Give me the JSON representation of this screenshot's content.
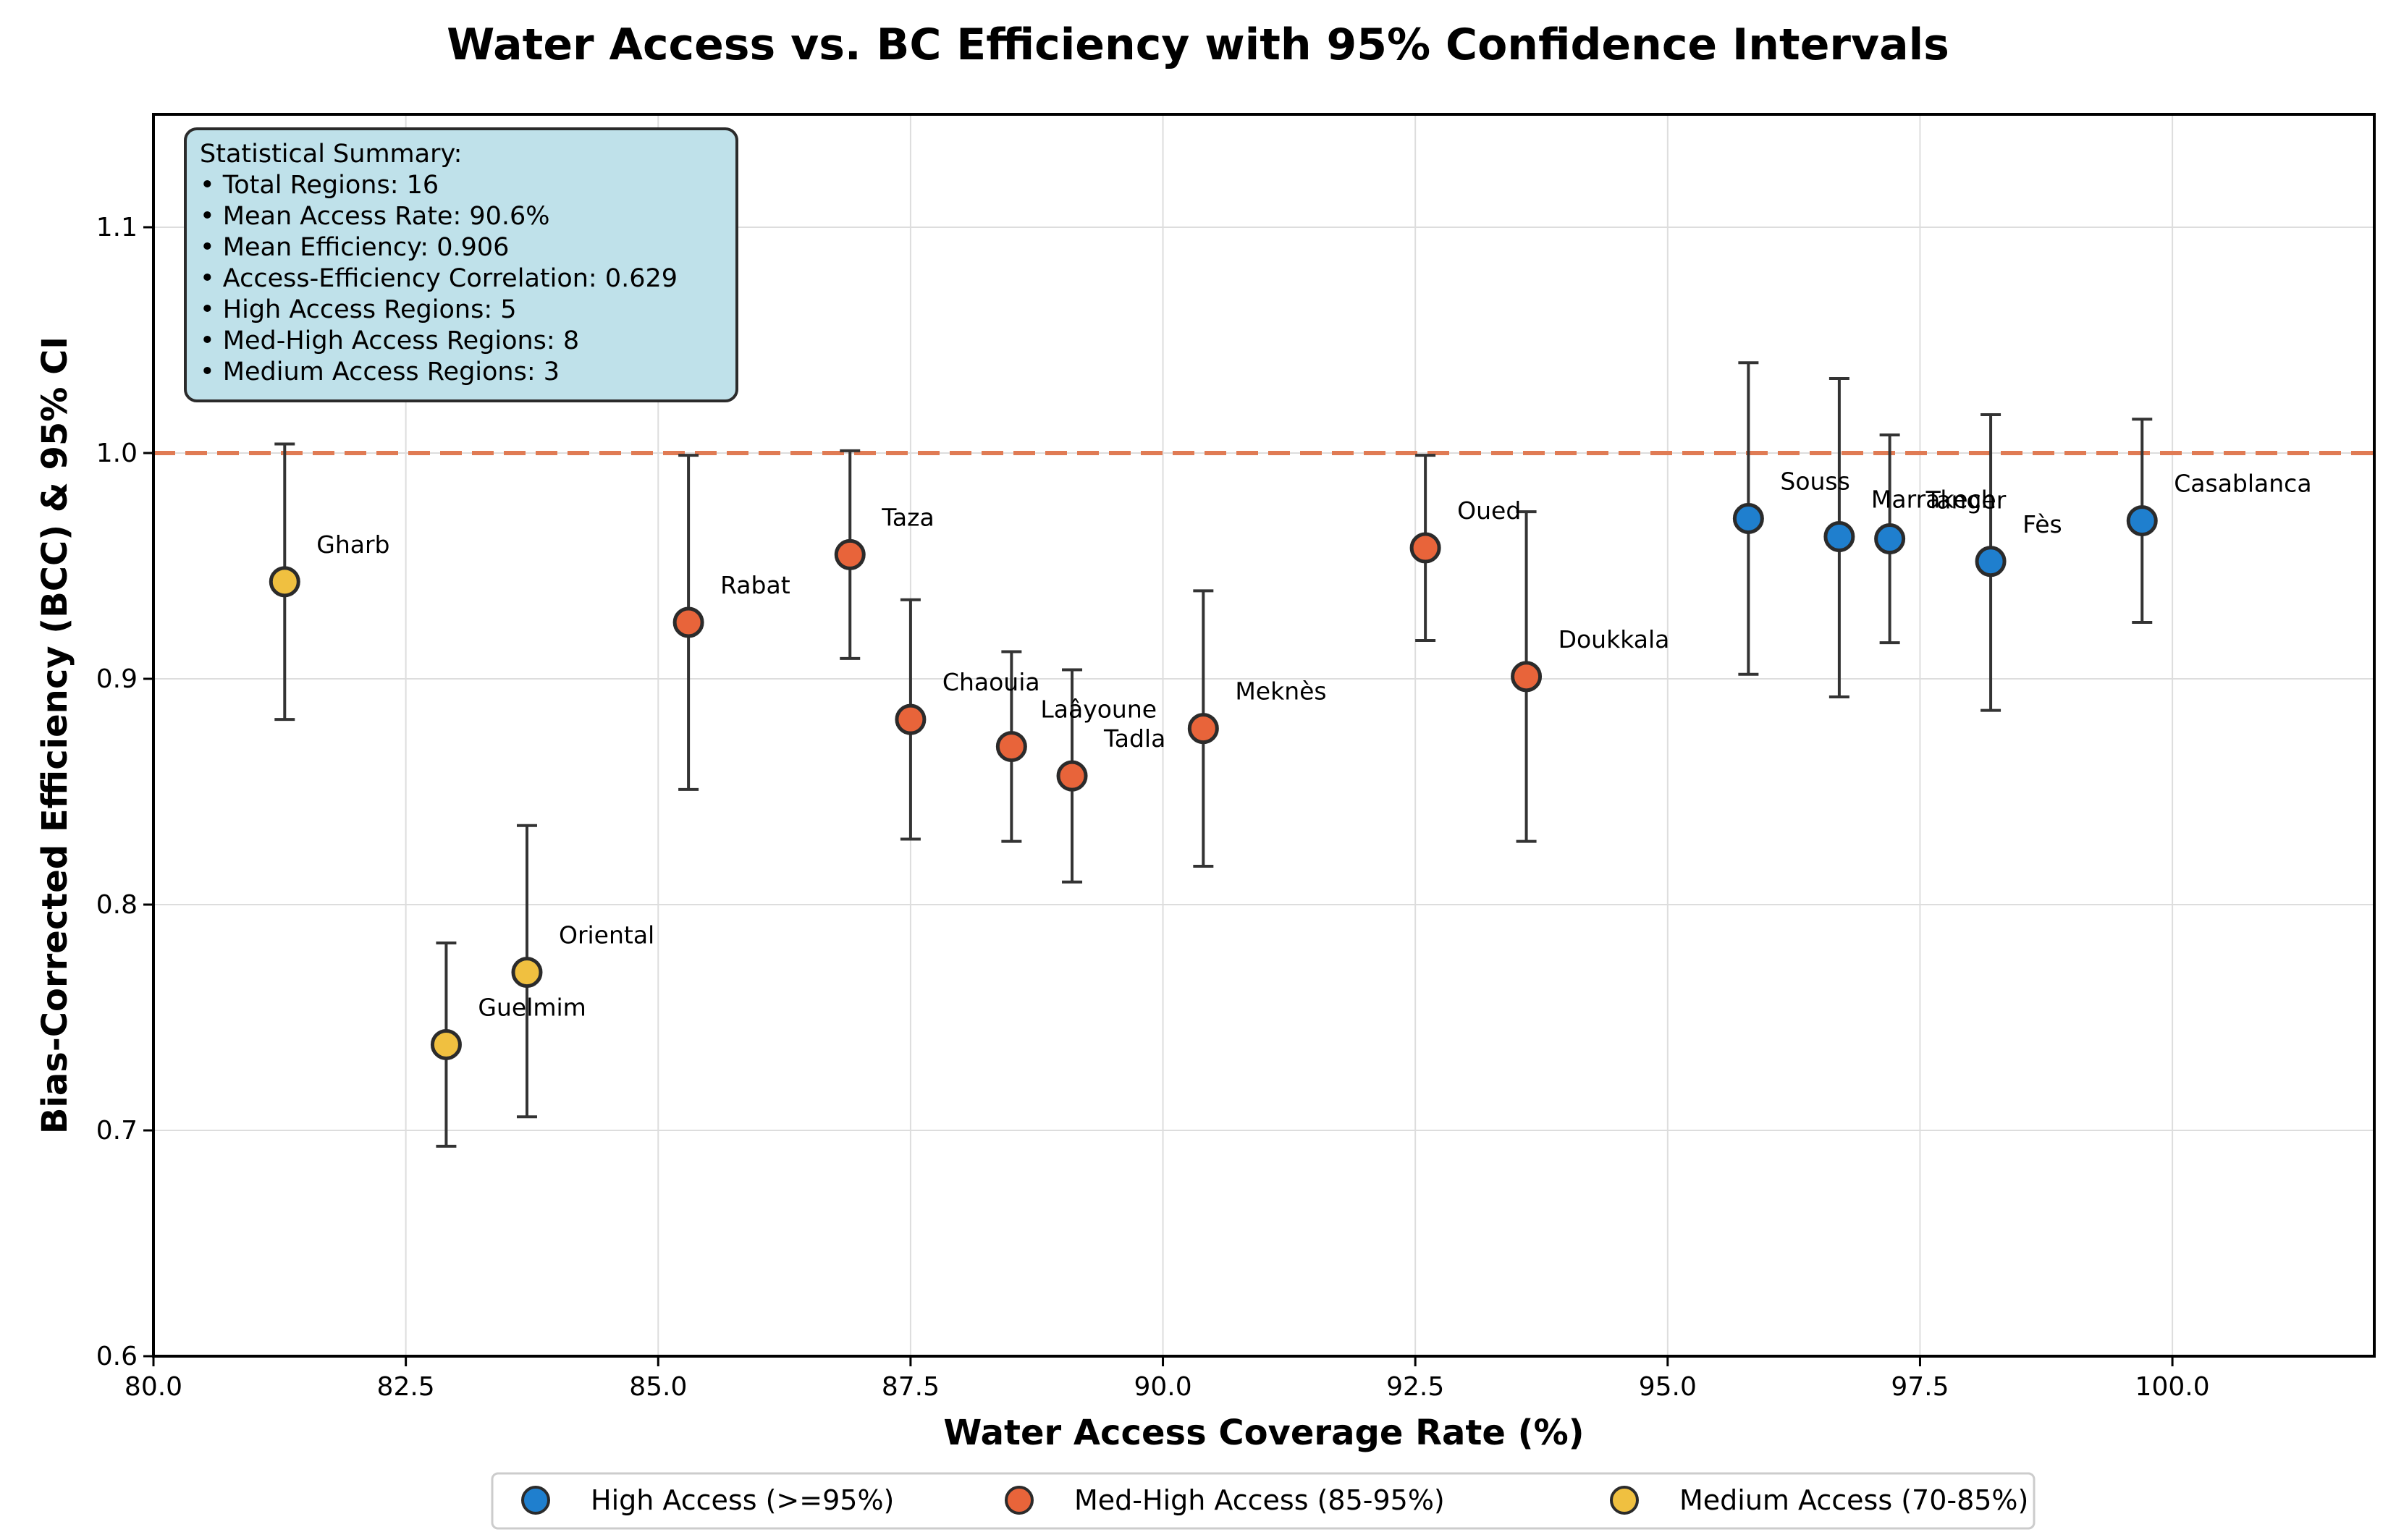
{
  "chart_data": {
    "type": "scatter",
    "title": "Water Access vs. BC Efficiency with 95% Confidence Intervals",
    "xlabel": "Water Access Coverage Rate (%)",
    "ylabel": "Bias-Corrected Efficiency (BCC) & 95% CI",
    "xlim": [
      80.0,
      102.0
    ],
    "ylim": [
      0.6,
      1.15
    ],
    "xticks": [
      80.0,
      82.5,
      85.0,
      87.5,
      90.0,
      92.5,
      95.0,
      97.5,
      100.0
    ],
    "xtick_labels": [
      "80.0",
      "82.5",
      "85.0",
      "87.5",
      "90.0",
      "92.5",
      "95.0",
      "97.5",
      "100.0"
    ],
    "yticks": [
      0.6,
      0.7,
      0.8,
      0.9,
      1.0,
      1.1
    ],
    "ytick_labels": [
      "0.6",
      "0.7",
      "0.8",
      "0.9",
      "1.0",
      "1.1"
    ],
    "grid": true,
    "reference_line": {
      "y": 1.0,
      "style": "dashed",
      "color": "#e07b54"
    },
    "categories": [
      {
        "key": "high",
        "name": "High Access (>=95%)",
        "color": "#1f7fce"
      },
      {
        "key": "medhigh",
        "name": "Med-High Access (85-95%)",
        "color": "#e8643a"
      },
      {
        "key": "medium",
        "name": "Medium Access (70-85%)",
        "color": "#f0c040"
      }
    ],
    "points": [
      {
        "label": "Gharb",
        "x": 81.3,
        "y": 0.943,
        "lo": 0.882,
        "hi": 1.004,
        "category": "medium"
      },
      {
        "label": "Guelmim",
        "x": 82.9,
        "y": 0.738,
        "lo": 0.693,
        "hi": 0.783,
        "category": "medium"
      },
      {
        "label": "Oriental",
        "x": 83.7,
        "y": 0.77,
        "lo": 0.706,
        "hi": 0.835,
        "category": "medium"
      },
      {
        "label": "Rabat",
        "x": 85.3,
        "y": 0.925,
        "lo": 0.851,
        "hi": 0.999,
        "category": "medhigh"
      },
      {
        "label": "Taza",
        "x": 86.9,
        "y": 0.955,
        "lo": 0.909,
        "hi": 1.001,
        "category": "medhigh"
      },
      {
        "label": "Chaouia",
        "x": 87.5,
        "y": 0.882,
        "lo": 0.829,
        "hi": 0.935,
        "category": "medhigh"
      },
      {
        "label": "Laâyoune",
        "x": 88.5,
        "y": 0.87,
        "lo": 0.828,
        "hi": 0.912,
        "category": "medhigh"
      },
      {
        "label": "Tadla",
        "x": 89.1,
        "y": 0.857,
        "lo": 0.81,
        "hi": 0.904,
        "category": "medhigh"
      },
      {
        "label": "Meknès",
        "x": 90.4,
        "y": 0.878,
        "lo": 0.817,
        "hi": 0.939,
        "category": "medhigh"
      },
      {
        "label": "Oued",
        "x": 92.6,
        "y": 0.958,
        "lo": 0.917,
        "hi": 0.999,
        "category": "medhigh"
      },
      {
        "label": "Doukkala",
        "x": 93.6,
        "y": 0.901,
        "lo": 0.828,
        "hi": 0.974,
        "category": "medhigh"
      },
      {
        "label": "Souss",
        "x": 95.8,
        "y": 0.971,
        "lo": 0.902,
        "hi": 1.04,
        "category": "high"
      },
      {
        "label": "Marrakech",
        "x": 96.7,
        "y": 0.963,
        "lo": 0.892,
        "hi": 1.033,
        "category": "high"
      },
      {
        "label": "Tanger",
        "x": 97.2,
        "y": 0.962,
        "lo": 0.916,
        "hi": 1.008,
        "category": "high"
      },
      {
        "label": "Fès",
        "x": 98.2,
        "y": 0.952,
        "lo": 0.886,
        "hi": 1.017,
        "category": "high"
      },
      {
        "label": "Casablanca",
        "x": 99.7,
        "y": 0.97,
        "lo": 0.925,
        "hi": 1.015,
        "category": "high"
      }
    ],
    "summary": {
      "heading": "Statistical Summary:",
      "lines": [
        "• Total Regions: 16",
        "• Mean Access Rate: 90.6%",
        "• Mean Efficiency: 0.906",
        "• Access-Efficiency Correlation: 0.629",
        "• High Access Regions: 5",
        "• Med-High Access Regions: 8",
        "• Medium Access Regions: 3"
      ]
    },
    "legend_position": "bottom-center"
  }
}
